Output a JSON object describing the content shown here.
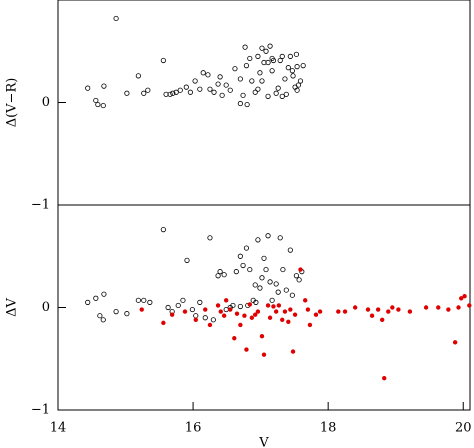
{
  "chart_data": [
    {
      "type": "scatter",
      "y_label": "Δ(V−R)",
      "xlim": [
        14,
        20.1
      ],
      "ylim": [
        -1,
        1
      ],
      "yticks": [
        {
          "value": -1,
          "label": "−1"
        },
        0
      ],
      "series": [
        {
          "color": "#000000",
          "filled": false,
          "x": [
            14.44,
            14.56,
            14.59,
            14.67,
            14.68,
            14.86,
            15.02,
            15.19,
            15.27,
            15.33,
            15.56,
            15.6,
            15.66,
            15.7,
            15.75,
            15.81,
            15.9,
            15.96,
            16.03,
            16.1,
            16.15,
            16.22,
            16.25,
            16.31,
            16.37,
            16.4,
            16.43,
            16.49,
            16.55,
            16.62,
            16.7,
            16.77,
            16.8,
            16.84,
            16.87,
            16.92,
            16.96,
            16.99,
            17.02,
            17.05,
            17.08,
            17.11,
            17.17,
            17.23,
            17.29,
            17.32,
            17.36,
            17.41,
            17.44,
            17.47,
            17.51,
            17.54,
            17.59,
            17.63,
            16.7,
            16.74,
            16.79,
            16.96,
            17.02,
            17.11,
            17.14,
            17.17,
            17.19,
            17.26,
            17.32,
            17.38,
            17.48,
            17.53,
            17.54,
            17.56
          ],
          "y": [
            0.14,
            0.02,
            -0.02,
            -0.03,
            0.16,
            0.82,
            0.09,
            0.26,
            0.09,
            0.12,
            0.41,
            0.08,
            0.08,
            0.09,
            0.1,
            0.12,
            0.15,
            0.1,
            0.21,
            0.13,
            0.29,
            0.27,
            0.13,
            0.1,
            0.18,
            0.25,
            0.07,
            0.17,
            0.12,
            0.33,
            0.23,
            0.54,
            -0.02,
            0.43,
            0.21,
            0.1,
            0.13,
            0.29,
            0.21,
            0.39,
            0.5,
            0.06,
            0.31,
            0.09,
            0.41,
            0.45,
            0.23,
            0.34,
            0.45,
            0.31,
            0.15,
            0.12,
            0.21,
            0.36,
            -0.01,
            0.07,
            0.36,
            0.45,
            0.53,
            0.39,
            0.55,
            0.43,
            0.41,
            0.14,
            0.06,
            0.08,
            0.26,
            0.47,
            0.35,
            0.17
          ]
        }
      ]
    },
    {
      "type": "scatter",
      "x_label": "V",
      "y_label": "ΔV",
      "xlim": [
        14,
        20.1
      ],
      "xticks": [
        14,
        16,
        18,
        20
      ],
      "ylim": [
        -1,
        1
      ],
      "yticks": [
        {
          "value": -1,
          "label": "−1"
        },
        0
      ],
      "series": [
        {
          "color": "#000000",
          "filled": false,
          "x": [
            14.44,
            14.56,
            14.62,
            14.67,
            14.68,
            14.86,
            15.02,
            15.19,
            15.27,
            15.36,
            15.56,
            15.63,
            15.69,
            15.78,
            15.85,
            15.91,
            15.99,
            16.04,
            16.1,
            16.18,
            16.25,
            16.3,
            16.37,
            16.4,
            16.46,
            16.49,
            16.55,
            16.59,
            16.64,
            16.7,
            16.74,
            16.79,
            16.81,
            16.84,
            16.89,
            16.93,
            16.96,
            16.99,
            17.02,
            17.05,
            17.08,
            17.11,
            17.14,
            17.17,
            17.23,
            17.26,
            17.29,
            17.33,
            17.38,
            17.44,
            17.47,
            17.53,
            17.57,
            17.61,
            16.7,
            16.92
          ],
          "y": [
            0.05,
            0.09,
            -0.08,
            -0.12,
            0.13,
            -0.04,
            -0.06,
            0.07,
            0.07,
            0.05,
            0.76,
            0.0,
            -0.04,
            0.02,
            0.07,
            0.46,
            -0.02,
            -0.08,
            0.05,
            -0.1,
            0.68,
            -0.12,
            0.31,
            0.35,
            0.32,
            -0.02,
            0.0,
            0.02,
            0.35,
            0.5,
            0.41,
            0.58,
            0.02,
            0.37,
            0.07,
            0.05,
            0.66,
            0.19,
            0.29,
            0.48,
            0.37,
            0.7,
            0.25,
            0.07,
            0.23,
            0.15,
            0.68,
            0.37,
            0.17,
            0.56,
            0.12,
            0.31,
            0.27,
            0.35,
            0.01,
            0.22
          ]
        },
        {
          "color": "#e00000",
          "filled": true,
          "x": [
            15.24,
            15.56,
            15.69,
            15.88,
            16.04,
            16.18,
            16.25,
            16.37,
            16.41,
            16.46,
            16.49,
            16.55,
            16.61,
            16.65,
            16.7,
            16.76,
            16.79,
            16.84,
            16.87,
            16.92,
            16.96,
            17.02,
            17.05,
            17.11,
            17.14,
            17.19,
            17.23,
            17.27,
            17.32,
            17.36,
            17.41,
            17.44,
            17.48,
            17.51,
            17.59,
            17.66,
            17.7,
            17.73,
            17.82,
            17.88,
            18.15,
            18.25,
            18.4,
            18.59,
            18.65,
            18.74,
            18.8,
            18.83,
            18.89,
            18.95,
            19.04,
            19.21,
            19.45,
            19.63,
            19.78,
            19.88,
            19.93,
            19.97,
            20.02,
            20.09
          ],
          "y": [
            -0.02,
            -0.15,
            -0.07,
            -0.04,
            -0.12,
            -0.02,
            -0.17,
            0.02,
            -0.04,
            -0.08,
            0.07,
            -0.02,
            -0.3,
            -0.06,
            -0.17,
            -0.08,
            -0.41,
            0.03,
            -0.1,
            -0.07,
            -0.04,
            -0.28,
            -0.46,
            0.02,
            -0.1,
            0.01,
            -0.04,
            0.02,
            -0.12,
            -0.04,
            -0.14,
            -0.02,
            -0.43,
            -0.07,
            0.37,
            0.07,
            -0.02,
            -0.17,
            -0.07,
            -0.04,
            -0.04,
            -0.04,
            0.0,
            -0.02,
            -0.08,
            -0.02,
            -0.12,
            -0.69,
            -0.04,
            0.0,
            -0.02,
            -0.04,
            0.0,
            0.0,
            -0.02,
            -0.34,
            0.0,
            0.09,
            0.11,
            0.02
          ]
        }
      ]
    }
  ]
}
